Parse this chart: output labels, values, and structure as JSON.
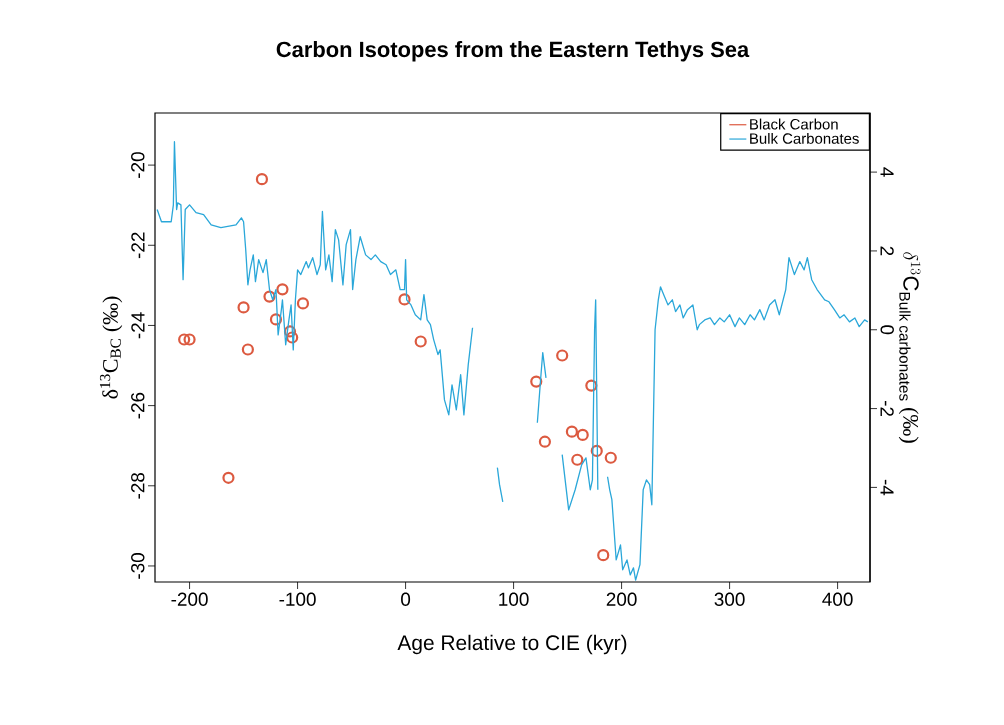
{
  "chart_data": {
    "type": "scatter",
    "title": "Carbon Isotopes from the Eastern Tethys Sea",
    "xlabel": "Age Relative to CIE (kyr)",
    "ylabel": "δ$^{13}$C$_{BC}$ (‰)",
    "y2label": "\\delta^{13}\\mathrm{C}_{\\mathrm{Bulk\\;carbonates}}\\ \\mbox{(‰)}",
    "xlim": [
      -232,
      430
    ],
    "xticks": [
      -200,
      -100,
      0,
      100,
      200,
      300,
      400
    ],
    "ylim": [
      -30.4,
      -18.7
    ],
    "yticks": [
      -30,
      -28,
      -26,
      -24,
      -22,
      -20
    ],
    "y2lim": [
      -6.4,
      5.5
    ],
    "y2ticks": [
      -4,
      -2,
      0,
      2,
      4
    ],
    "legend": "top right",
    "grid": false,
    "series": [
      {
        "name": "Black Carbon",
        "marker": "circle",
        "color": "#dc5a40",
        "x": [
          -133,
          -205,
          -200,
          -150,
          -146,
          -164,
          -126,
          -114,
          -120,
          -107,
          -105,
          -95,
          -1,
          14,
          121,
          145,
          129,
          154,
          164,
          159,
          172,
          177,
          190,
          183
        ],
        "values": [
          -20.35,
          -24.35,
          -24.35,
          -23.55,
          -24.6,
          -27.8,
          -23.28,
          -23.1,
          -23.85,
          -24.15,
          -24.3,
          -23.45,
          -23.35,
          -24.4,
          -25.4,
          -24.75,
          -26.9,
          -26.65,
          -26.73,
          -27.35,
          -25.5,
          -27.13,
          -27.3,
          -29.73
        ]
      },
      {
        "name": "Bulk Carbonates",
        "type": "line",
        "axis": "y2",
        "marker": "none",
        "line_style": "solid",
        "color": "#2aa7d9",
        "x": [
          -230,
          -226,
          -217,
          -215,
          -214,
          -212,
          -211,
          -208,
          -206,
          -204,
          -200,
          -194,
          -187,
          -180,
          -171,
          -157,
          -152,
          -150,
          -148,
          -146,
          -144,
          -141,
          -139,
          -136,
          -132,
          -129,
          -126,
          -123,
          -120,
          -118,
          -115,
          -114,
          -111,
          -108,
          -106,
          -104,
          -102,
          -100,
          -97,
          -92,
          -90,
          -86,
          -82,
          -79,
          -77,
          -74,
          -71,
          -68,
          -65,
          -62,
          -58,
          -55,
          -51,
          -49,
          -46,
          -42,
          -37,
          -32,
          -28,
          -23,
          -18,
          -14,
          -9,
          -5,
          -1,
          0,
          1,
          5,
          9,
          14,
          17,
          20,
          23,
          26,
          30,
          32,
          36,
          40,
          43,
          47,
          51,
          54,
          58,
          62,
          70,
          85,
          87,
          90,
          100,
          122,
          125,
          127,
          130,
          138,
          145,
          151,
          157,
          163,
          167,
          171,
          173,
          175,
          176,
          178,
          182,
          187,
          189,
          191,
          195,
          199,
          201,
          205,
          208,
          211,
          213,
          217,
          220,
          223,
          226,
          228,
          231,
          234,
          236,
          239,
          243,
          247,
          250,
          254,
          257,
          261,
          266,
          270,
          272,
          277,
          282,
          286,
          291,
          295,
          300,
          305,
          309,
          314,
          319,
          323,
          328,
          332,
          337,
          342,
          346,
          352,
          355,
          360,
          365,
          369,
          372,
          376,
          381,
          388,
          392,
          397,
          402,
          406,
          411,
          416,
          420,
          425,
          428
        ],
        "values": [
          3.05,
          2.74,
          2.74,
          3.17,
          4.77,
          3.05,
          3.22,
          3.17,
          1.27,
          3.05,
          3.17,
          2.97,
          2.92,
          2.66,
          2.59,
          2.66,
          2.84,
          2.74,
          2.03,
          1.14,
          1.52,
          1.9,
          1.22,
          1.78,
          1.45,
          1.78,
          1.02,
          0.76,
          1.02,
          -0.13,
          0.51,
          0.76,
          -0.38,
          0.25,
          0.63,
          -0.51,
          0.76,
          1.52,
          1.4,
          1.73,
          1.57,
          1.83,
          1.4,
          1.65,
          3.0,
          1.52,
          1.9,
          1.22,
          2.54,
          2.28,
          1.14,
          2.16,
          2.54,
          1.02,
          1.78,
          2.36,
          1.9,
          1.78,
          1.9,
          1.73,
          1.65,
          1.4,
          1.52,
          1.02,
          1.02,
          1.78,
          0.76,
          0.63,
          0.38,
          0.25,
          0.89,
          0.25,
          0.13,
          -0.25,
          -0.63,
          -0.51,
          -1.78,
          -2.16,
          -1.4,
          -2.03,
          -1.14,
          -2.16,
          -0.89,
          0.05,
          null,
          -3.5,
          -3.93,
          -4.37,
          null,
          -2.36,
          -1.27,
          -0.58,
          -1.22,
          null,
          -3.17,
          -4.57,
          -4.06,
          -3.43,
          -3.25,
          -4.06,
          -3.81,
          0.0,
          0.76,
          -4.06,
          null,
          -3.73,
          -4.06,
          -4.31,
          -5.84,
          -5.46,
          -6.09,
          -5.84,
          -6.22,
          -6.04,
          -6.35,
          -5.96,
          -4.06,
          -3.81,
          -3.93,
          -4.44,
          0.0,
          0.76,
          1.09,
          0.89,
          0.63,
          0.76,
          0.46,
          0.63,
          0.3,
          0.51,
          0.63,
          0.0,
          0.13,
          0.25,
          0.3,
          0.13,
          0.3,
          0.2,
          0.38,
          0.08,
          0.3,
          0.13,
          0.38,
          0.25,
          0.51,
          0.25,
          0.63,
          0.76,
          0.38,
          1.02,
          1.83,
          1.4,
          1.73,
          1.52,
          1.83,
          1.27,
          1.02,
          0.76,
          0.71,
          0.51,
          0.3,
          0.38,
          0.2,
          0.3,
          0.08,
          0.25,
          0.2
        ]
      }
    ]
  }
}
